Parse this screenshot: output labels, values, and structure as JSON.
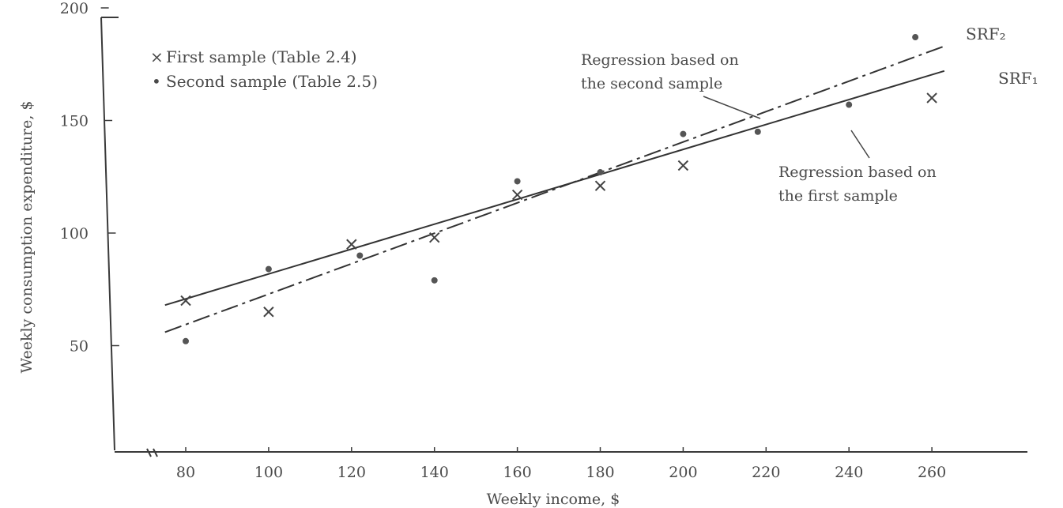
{
  "chart_data": {
    "type": "scatter",
    "title": "",
    "xlabel": "Weekly income, $",
    "ylabel": "Weekly consumption expenditure, $",
    "xlim": [
      70,
      270
    ],
    "ylim": [
      0,
      200
    ],
    "xticks": [
      80,
      100,
      120,
      140,
      160,
      180,
      200,
      220,
      240,
      260
    ],
    "yticks": [
      50,
      100,
      150,
      200
    ],
    "xtick_labels": [
      "80",
      "100",
      "120",
      "140",
      "160",
      "180",
      "200",
      "220",
      "240",
      "260"
    ],
    "ytick_labels": [
      "50",
      "100",
      "150",
      "200"
    ],
    "grid": false,
    "legend_position": "top-left",
    "series": [
      {
        "name": "First sample (Table 2.4)",
        "marker": "×",
        "points": [
          [
            80,
            70
          ],
          [
            100,
            65
          ],
          [
            120,
            95
          ],
          [
            140,
            98
          ],
          [
            160,
            117
          ],
          [
            180,
            121
          ],
          [
            200,
            130
          ],
          [
            260,
            160
          ]
        ]
      },
      {
        "name": "Second sample (Table 2.5)",
        "marker": "•",
        "points": [
          [
            80,
            52
          ],
          [
            100,
            84
          ],
          [
            122,
            90
          ],
          [
            140,
            79
          ],
          [
            160,
            123
          ],
          [
            180,
            127
          ],
          [
            200,
            144
          ],
          [
            218,
            145
          ],
          [
            240,
            157
          ],
          [
            256,
            187
          ]
        ]
      }
    ],
    "lines": [
      {
        "label": "SRF₁",
        "style": "solid",
        "from": [
          75,
          68
        ],
        "to": [
          263,
          172
        ]
      },
      {
        "label": "SRF₂",
        "style": "dashed",
        "from": [
          75,
          56
        ],
        "to": [
          263,
          183
        ]
      }
    ],
    "annotations": [
      {
        "lines": [
          "Regression based on",
          "the second sample"
        ],
        "points_to": "SRF₂"
      },
      {
        "lines": [
          "Regression based on",
          "the first sample"
        ],
        "points_to": "SRF₁"
      }
    ]
  }
}
